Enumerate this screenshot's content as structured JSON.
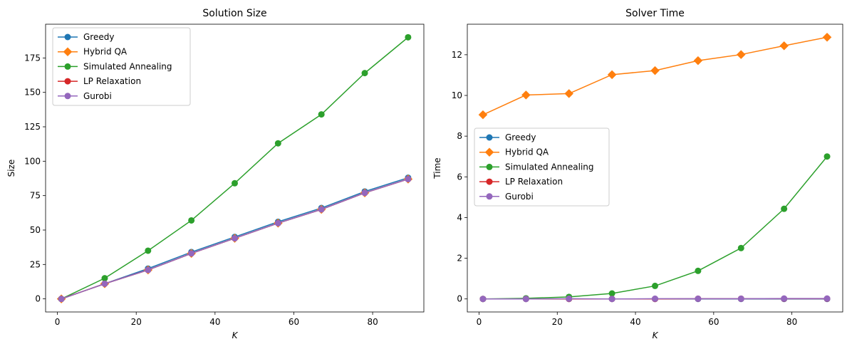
{
  "chart_data": [
    {
      "type": "line",
      "title": "Solution Size",
      "xlabel": "K",
      "ylabel": "Size",
      "xlim": [
        -3,
        93
      ],
      "ylim": [
        -9.5,
        199.5
      ],
      "xticks": [
        0,
        20,
        40,
        60,
        80
      ],
      "yticks": [
        0,
        25,
        50,
        75,
        100,
        125,
        150,
        175
      ],
      "legend_position": "upper-left",
      "x": [
        1,
        12,
        23,
        34,
        45,
        56,
        67,
        78,
        89
      ],
      "series": [
        {
          "name": "Greedy",
          "color": "#1f77b4",
          "marker": "circle",
          "values": [
            0,
            11,
            22,
            34,
            45,
            56,
            66,
            78,
            88
          ]
        },
        {
          "name": "Hybrid QA",
          "color": "#ff7f0e",
          "marker": "diamond",
          "values": [
            0,
            11,
            21,
            33,
            44,
            55,
            65,
            77,
            87
          ]
        },
        {
          "name": "Simulated Annealing",
          "color": "#2ca02c",
          "marker": "circle",
          "values": [
            0,
            15,
            35,
            57,
            84,
            113,
            134,
            164,
            190
          ]
        },
        {
          "name": "LP Relaxation",
          "color": "#d62728",
          "marker": "circle",
          "values": [
            0,
            11,
            21,
            33,
            44,
            55,
            65,
            77,
            87
          ]
        },
        {
          "name": "Gurobi",
          "color": "#9467bd",
          "marker": "circle",
          "values": [
            0,
            11,
            21,
            33,
            44,
            55,
            65,
            77,
            87
          ]
        }
      ]
    },
    {
      "type": "line",
      "title": "Solver Time",
      "xlabel": "K",
      "ylabel": "Time",
      "xlim": [
        -3,
        93
      ],
      "ylim": [
        -0.64,
        13.5
      ],
      "xticks": [
        0,
        20,
        40,
        60,
        80
      ],
      "yticks": [
        0,
        2,
        4,
        6,
        8,
        10,
        12
      ],
      "legend_position": "center-left",
      "x": [
        1,
        12,
        23,
        34,
        45,
        56,
        67,
        78,
        89
      ],
      "series": [
        {
          "name": "Greedy",
          "color": "#1f77b4",
          "marker": "circle",
          "values": [
            0.0,
            0.0,
            0.0,
            0.0,
            0.0,
            0.0,
            0.0,
            0.0,
            0.0
          ]
        },
        {
          "name": "Hybrid QA",
          "color": "#ff7f0e",
          "marker": "diamond",
          "values": [
            9.05,
            10.02,
            10.09,
            11.02,
            11.22,
            11.71,
            12.01,
            12.44,
            12.86
          ]
        },
        {
          "name": "Simulated Annealing",
          "color": "#2ca02c",
          "marker": "circle",
          "values": [
            0.0,
            0.03,
            0.1,
            0.27,
            0.64,
            1.38,
            2.5,
            4.43,
            7.0
          ]
        },
        {
          "name": "LP Relaxation",
          "color": "#d62728",
          "marker": "circle",
          "values": [
            0.0,
            0.0,
            0.0,
            0.0,
            0.0,
            0.01,
            0.01,
            0.01,
            0.01
          ]
        },
        {
          "name": "Gurobi",
          "color": "#9467bd",
          "marker": "circle",
          "values": [
            0.0,
            0.0,
            0.01,
            0.0,
            0.01,
            0.01,
            0.01,
            0.02,
            0.02
          ]
        }
      ]
    }
  ]
}
